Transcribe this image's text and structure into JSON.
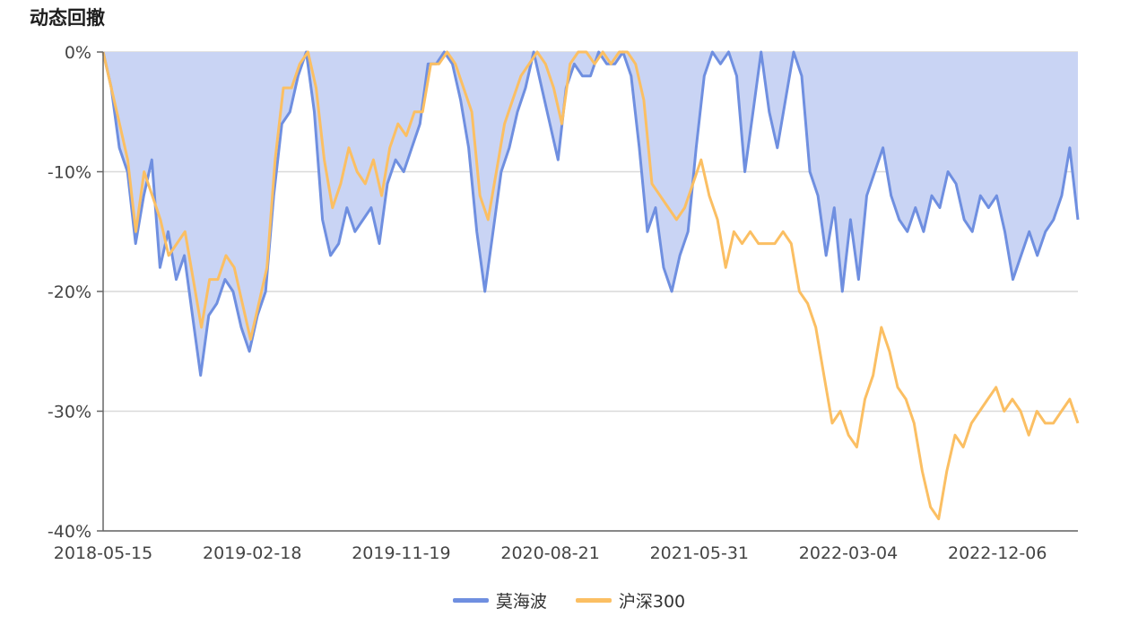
{
  "chart_data": {
    "type": "line",
    "title": "动态回撤",
    "xlabel": "",
    "ylabel": "",
    "ylim": [
      -40,
      0
    ],
    "yticks": [
      0,
      -10,
      -20,
      -30,
      -40
    ],
    "ytick_labels": [
      "0%",
      "-10%",
      "-20%",
      "-30%",
      "-40%"
    ],
    "x_ticks": [
      "2018-05-15",
      "2019-02-18",
      "2019-11-19",
      "2020-08-21",
      "2021-05-31",
      "2022-03-04",
      "2022-12-06"
    ],
    "grid": true,
    "legend_position": "bottom-center",
    "series": [
      {
        "name": "莫海波",
        "color": "#6f8fe0",
        "fill": "#c9d4f4",
        "values": [
          0,
          -3,
          -8,
          -10,
          -16,
          -12,
          -9,
          -18,
          -15,
          -19,
          -17,
          -22,
          -27,
          -22,
          -21,
          -19,
          -20,
          -23,
          -25,
          -22,
          -20,
          -12,
          -6,
          -5,
          -2,
          0,
          -5,
          -14,
          -17,
          -16,
          -13,
          -15,
          -14,
          -13,
          -16,
          -11,
          -9,
          -10,
          -8,
          -6,
          -1,
          -1,
          0,
          -1,
          -4,
          -8,
          -15,
          -20,
          -15,
          -10,
          -8,
          -5,
          -3,
          0,
          -3,
          -6,
          -9,
          -3,
          -1,
          -2,
          -2,
          0,
          -1,
          -1,
          0,
          -2,
          -8,
          -15,
          -13,
          -18,
          -20,
          -17,
          -15,
          -8,
          -2,
          0,
          -1,
          0,
          -2,
          -10,
          -5,
          0,
          -5,
          -8,
          -4,
          0,
          -2,
          -10,
          -12,
          -17,
          -13,
          -20,
          -14,
          -19,
          -12,
          -10,
          -8,
          -12,
          -14,
          -15,
          -13,
          -15,
          -12,
          -13,
          -10,
          -11,
          -14,
          -15,
          -12,
          -13,
          -12,
          -15,
          -19,
          -17,
          -15,
          -17,
          -15,
          -14,
          -12,
          -8,
          -14
        ]
      },
      {
        "name": "沪深300",
        "color": "#fbbf63",
        "values": [
          0,
          -3,
          -6,
          -9,
          -15,
          -10,
          -12,
          -14,
          -17,
          -16,
          -15,
          -19,
          -23,
          -19,
          -19,
          -17,
          -18,
          -21,
          -24,
          -21,
          -18,
          -9,
          -3,
          -3,
          -1,
          0,
          -3,
          -9,
          -13,
          -11,
          -8,
          -10,
          -11,
          -9,
          -12,
          -8,
          -6,
          -7,
          -5,
          -5,
          -1,
          -1,
          0,
          -1,
          -3,
          -5,
          -12,
          -14,
          -10,
          -6,
          -4,
          -2,
          -1,
          0,
          -1,
          -3,
          -6,
          -1,
          0,
          0,
          -1,
          0,
          -1,
          0,
          0,
          -1,
          -4,
          -11,
          -12,
          -13,
          -14,
          -13,
          -11,
          -9,
          -12,
          -14,
          -18,
          -15,
          -16,
          -15,
          -16,
          -16,
          -16,
          -15,
          -16,
          -20,
          -21,
          -23,
          -27,
          -31,
          -30,
          -32,
          -33,
          -29,
          -27,
          -23,
          -25,
          -28,
          -29,
          -31,
          -35,
          -38,
          -39,
          -35,
          -32,
          -33,
          -31,
          -30,
          -29,
          -28,
          -30,
          -29,
          -30,
          -32,
          -30,
          -31,
          -31,
          -30,
          -29,
          -31
        ]
      }
    ]
  }
}
